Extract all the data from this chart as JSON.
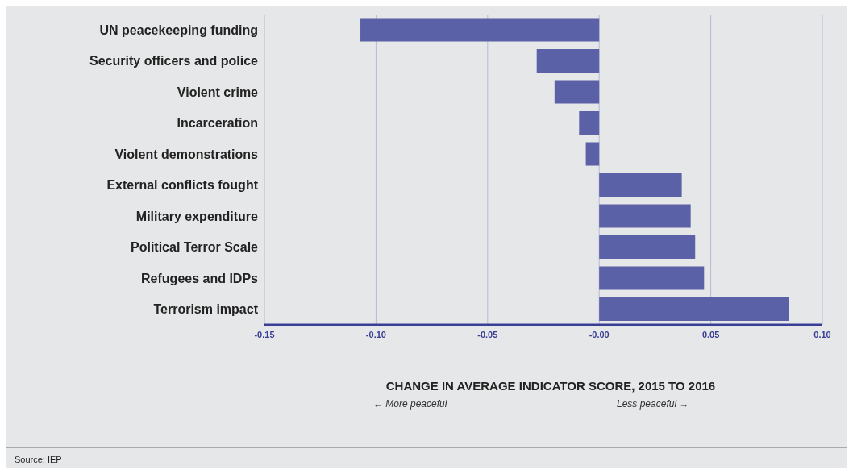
{
  "chart_data": {
    "type": "bar",
    "orientation": "horizontal",
    "xlabel": "CHANGE IN AVERAGE INDICATOR SCORE, 2015 TO 2016",
    "categories": [
      "UN peacekeeping funding",
      "Security officers and police",
      "Violent crime",
      "Incarceration",
      "Violent demonstrations",
      "External conflicts fought",
      "Military expenditure",
      "Political Terror Scale",
      "Refugees and IDPs",
      "Terrorism impact"
    ],
    "values": [
      -0.107,
      -0.028,
      -0.02,
      -0.009,
      -0.006,
      0.037,
      0.041,
      0.043,
      0.047,
      0.085
    ],
    "color": "#5b61a6",
    "xlim": [
      -0.15,
      0.1
    ],
    "xticks": [
      {
        "value": -0.15,
        "label": "-0.15"
      },
      {
        "value": -0.1,
        "label": "-0.10"
      },
      {
        "value": -0.05,
        "label": "-0.05"
      },
      {
        "value": 0,
        "label": "-0.00"
      },
      {
        "value": 0.05,
        "label": "0.05"
      },
      {
        "value": 0.1,
        "label": "0.10"
      }
    ],
    "grid": "x",
    "legend": false,
    "annotations": [
      "← More peaceful",
      "Less peaceful →",
      "Source: IEP"
    ]
  }
}
